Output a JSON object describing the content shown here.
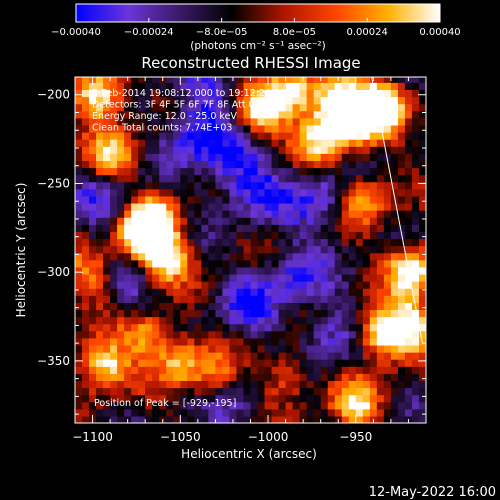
{
  "chart_data": {
    "type": "heatmap",
    "title": "Reconstructed RHESSI Image",
    "xlabel": "Heliocentric X (arcsec)",
    "ylabel": "Heliocentric Y (arcsec)",
    "xlim": [
      -1110,
      -910
    ],
    "ylim": [
      -385,
      -190
    ],
    "x_ticks": [
      -1100,
      -1050,
      -1000,
      -950
    ],
    "y_ticks": [
      -200,
      -250,
      -300,
      -350
    ],
    "x_tick_labels": [
      "−1100",
      "−1050",
      "−1000",
      "−950"
    ],
    "y_tick_labels": [
      "−200",
      "−250",
      "−300",
      "−350"
    ],
    "colorbar": {
      "range": [
        -0.0004,
        0.0004
      ],
      "tick_values": [
        -0.0004,
        -0.00024,
        -8e-05,
        8e-05,
        0.00024,
        0.0004
      ],
      "tick_labels": [
        "−0.00040",
        "−0.00024",
        "−8.0e−05",
        "8.0e−05",
        "0.00024",
        "0.00040"
      ],
      "units_text": "(photons cm⁻² s⁻¹ asec⁻²)",
      "colors": [
        "#0000ff",
        "#6a35d9",
        "#3a1a66",
        "#000000",
        "#b01500",
        "#ff4500",
        "#ffb000",
        "#ffffff"
      ]
    },
    "info_lines": [
      "9-Feb-2014 19:08:12.000 to 19:12:24.000",
      "Detectors: 3F 4F 5F 6F 7F 8F  Att 0",
      "Energy Range: 12.0 - 25.0 keV",
      "Clean     Total counts: 7.74E+03"
    ],
    "peak_text": "Position of Peak = [-929,-195]",
    "peak": [
      -929,
      -195
    ],
    "limb_line": [
      [
        -941,
        -190
      ],
      [
        -912,
        -340
      ]
    ],
    "hot_regions": [
      {
        "x": -1095,
        "y": -200,
        "v": 0.85
      },
      {
        "x": -1088,
        "y": -235,
        "v": 0.6
      },
      {
        "x": -1060,
        "y": -290,
        "v": 0.9
      },
      {
        "x": -1075,
        "y": -278,
        "v": 0.8
      },
      {
        "x": -1065,
        "y": -270,
        "v": 0.7
      },
      {
        "x": -1005,
        "y": -210,
        "v": 0.8
      },
      {
        "x": -985,
        "y": -198,
        "v": 0.65
      },
      {
        "x": -960,
        "y": -203,
        "v": 0.95
      },
      {
        "x": -950,
        "y": -215,
        "v": 0.8
      },
      {
        "x": -970,
        "y": -225,
        "v": 0.6
      },
      {
        "x": -935,
        "y": -205,
        "v": 0.9
      },
      {
        "x": -945,
        "y": -258,
        "v": 0.55
      },
      {
        "x": -918,
        "y": -298,
        "v": 0.85
      },
      {
        "x": -935,
        "y": -335,
        "v": 0.85
      },
      {
        "x": -918,
        "y": -330,
        "v": 0.7
      },
      {
        "x": -950,
        "y": -375,
        "v": 0.6
      },
      {
        "x": -1095,
        "y": -352,
        "v": 0.8
      },
      {
        "x": -1070,
        "y": -335,
        "v": 0.6
      },
      {
        "x": -1050,
        "y": -350,
        "v": 0.55
      },
      {
        "x": -1030,
        "y": -360,
        "v": 0.4
      },
      {
        "x": -990,
        "y": -358,
        "v": 0.45
      },
      {
        "x": -1100,
        "y": -300,
        "v": 0.5
      }
    ],
    "cold_regions": [
      {
        "x": -1040,
        "y": -222,
        "v": -0.7
      },
      {
        "x": -1020,
        "y": -240,
        "v": -0.55
      },
      {
        "x": -1005,
        "y": -255,
        "v": -0.5
      },
      {
        "x": -970,
        "y": -260,
        "v": -0.55
      },
      {
        "x": -985,
        "y": -300,
        "v": -0.5
      },
      {
        "x": -1010,
        "y": -318,
        "v": -0.55
      },
      {
        "x": -1090,
        "y": -262,
        "v": -0.55
      },
      {
        "x": -1080,
        "y": -308,
        "v": -0.4
      },
      {
        "x": -965,
        "y": -335,
        "v": -0.5
      },
      {
        "x": -1035,
        "y": -200,
        "v": -0.4
      },
      {
        "x": -1020,
        "y": -375,
        "v": -0.35
      }
    ]
  },
  "footer": {
    "date_stamp": "12-May-2022 16:00"
  }
}
